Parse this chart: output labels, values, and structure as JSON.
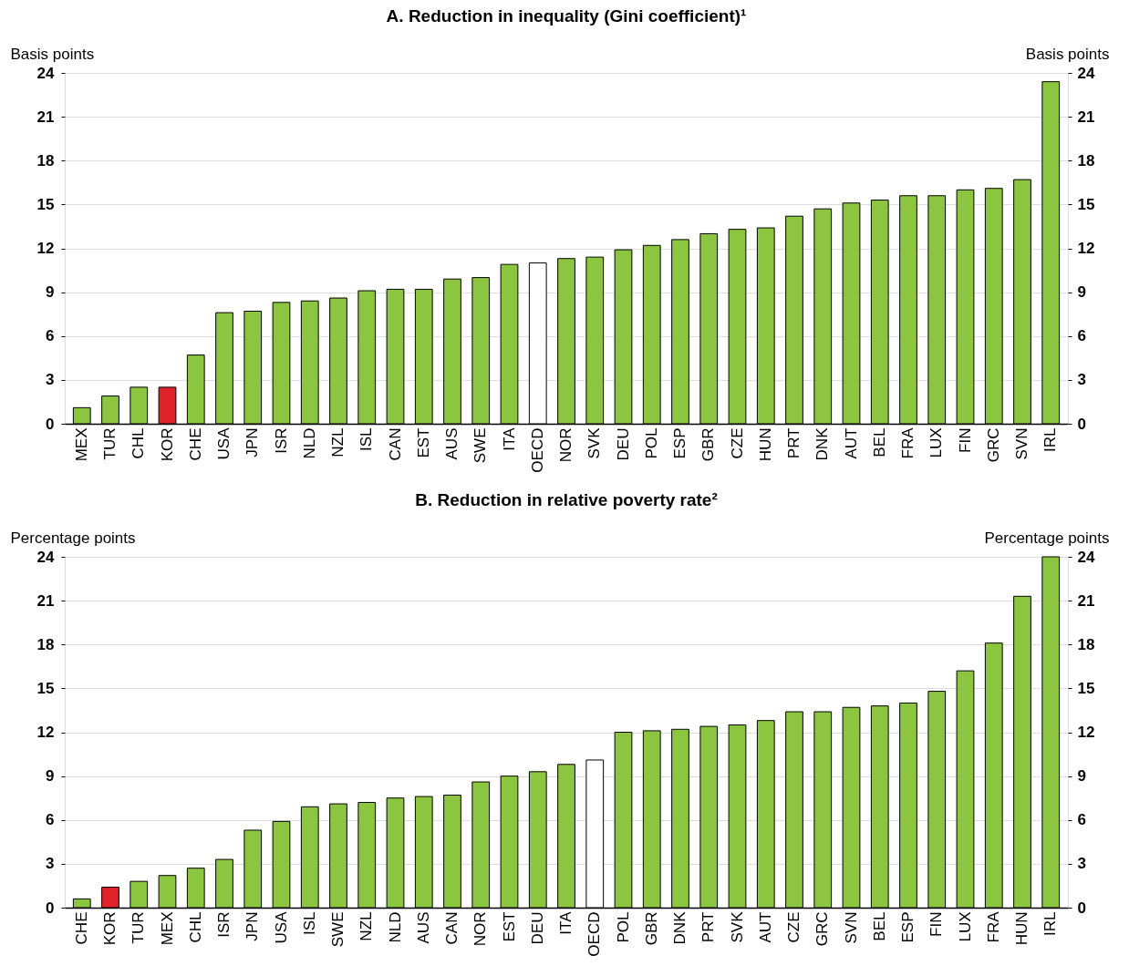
{
  "chart_data": [
    {
      "type": "bar",
      "title": "A. Reduction in inequality (Gini coefficient)¹",
      "ylabel": "Basis points",
      "y2label": "Basis points",
      "categories": [
        "MEX",
        "TUR",
        "CHL",
        "KOR",
        "CHE",
        "USA",
        "JPN",
        "ISR",
        "NLD",
        "NZL",
        "ISL",
        "CAN",
        "EST",
        "AUS",
        "SWE",
        "ITA",
        "OECD",
        "NOR",
        "SVK",
        "DEU",
        "POL",
        "ESP",
        "GBR",
        "CZE",
        "HUN",
        "PRT",
        "DNK",
        "AUT",
        "BEL",
        "FRA",
        "LUX",
        "FIN",
        "GRC",
        "SVN",
        "IRL"
      ],
      "values": [
        1.1,
        1.9,
        2.5,
        2.5,
        4.7,
        7.6,
        7.7,
        8.3,
        8.4,
        8.6,
        9.1,
        9.2,
        9.2,
        9.9,
        10.0,
        10.9,
        11.0,
        11.3,
        11.4,
        11.9,
        12.2,
        12.6,
        13.0,
        13.3,
        13.4,
        14.2,
        14.7,
        15.1,
        15.3,
        15.6,
        15.6,
        16.0,
        16.1,
        16.7,
        23.4
      ],
      "colors": [
        "#8cc641",
        "#8cc641",
        "#8cc641",
        "#e0232a",
        "#8cc641",
        "#8cc641",
        "#8cc641",
        "#8cc641",
        "#8cc641",
        "#8cc641",
        "#8cc641",
        "#8cc641",
        "#8cc641",
        "#8cc641",
        "#8cc641",
        "#8cc641",
        "#ffffff",
        "#8cc641",
        "#8cc641",
        "#8cc641",
        "#8cc641",
        "#8cc641",
        "#8cc641",
        "#8cc641",
        "#8cc641",
        "#8cc641",
        "#8cc641",
        "#8cc641",
        "#8cc641",
        "#8cc641",
        "#8cc641",
        "#8cc641",
        "#8cc641",
        "#8cc641",
        "#8cc641"
      ],
      "ylim": [
        0,
        24
      ],
      "yticks": [
        0,
        3,
        6,
        9,
        12,
        15,
        18,
        21,
        24
      ],
      "y2lim": [
        0,
        24
      ],
      "y2ticks": [
        0,
        3,
        6,
        9,
        12,
        15,
        18,
        21,
        24
      ],
      "grid": "y"
    },
    {
      "type": "bar",
      "title": "B. Reduction in relative poverty rate²",
      "ylabel": "Percentage points",
      "y2label": "Percentage points",
      "categories": [
        "CHE",
        "KOR",
        "TUR",
        "MEX",
        "CHL",
        "ISR",
        "JPN",
        "USA",
        "ISL",
        "SWE",
        "NZL",
        "NLD",
        "AUS",
        "CAN",
        "NOR",
        "EST",
        "DEU",
        "ITA",
        "OECD",
        "POL",
        "GBR",
        "DNK",
        "PRT",
        "SVK",
        "AUT",
        "CZE",
        "GRC",
        "SVN",
        "BEL",
        "ESP",
        "FIN",
        "LUX",
        "FRA",
        "HUN",
        "IRL"
      ],
      "values": [
        0.6,
        1.4,
        1.8,
        2.2,
        2.7,
        3.3,
        5.3,
        5.9,
        6.9,
        7.1,
        7.2,
        7.5,
        7.6,
        7.7,
        8.6,
        9.0,
        9.3,
        9.8,
        10.1,
        12.0,
        12.1,
        12.2,
        12.4,
        12.5,
        12.8,
        13.4,
        13.4,
        13.7,
        13.8,
        14.0,
        14.8,
        16.2,
        18.1,
        21.3,
        24.0
      ],
      "colors": [
        "#8cc641",
        "#e0232a",
        "#8cc641",
        "#8cc641",
        "#8cc641",
        "#8cc641",
        "#8cc641",
        "#8cc641",
        "#8cc641",
        "#8cc641",
        "#8cc641",
        "#8cc641",
        "#8cc641",
        "#8cc641",
        "#8cc641",
        "#8cc641",
        "#8cc641",
        "#8cc641",
        "#ffffff",
        "#8cc641",
        "#8cc641",
        "#8cc641",
        "#8cc641",
        "#8cc641",
        "#8cc641",
        "#8cc641",
        "#8cc641",
        "#8cc641",
        "#8cc641",
        "#8cc641",
        "#8cc641",
        "#8cc641",
        "#8cc641",
        "#8cc641",
        "#8cc641"
      ],
      "ylim": [
        0,
        24
      ],
      "yticks": [
        0,
        3,
        6,
        9,
        12,
        15,
        18,
        21,
        24
      ],
      "y2lim": [
        0,
        24
      ],
      "y2ticks": [
        0,
        3,
        6,
        9,
        12,
        15,
        18,
        21,
        24
      ],
      "grid": "y"
    }
  ]
}
